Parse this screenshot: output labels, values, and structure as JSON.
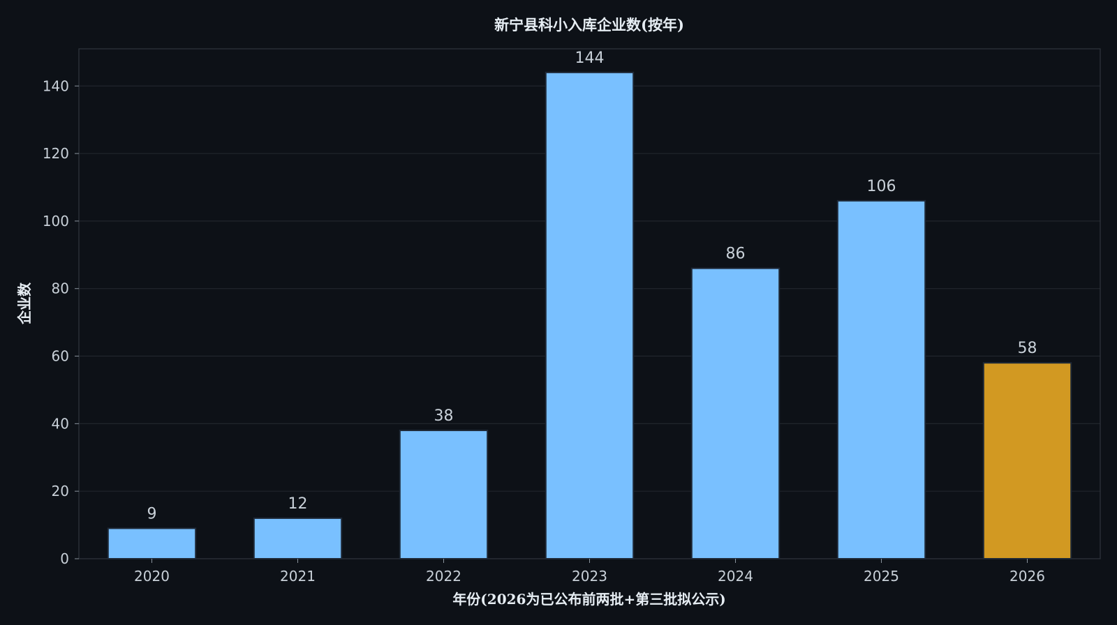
{
  "chart_data": {
    "type": "bar",
    "title": "新宁县科小入库企业数(按年)",
    "xlabel": "年份(2026为已公布前两批+第三批拟公示)",
    "ylabel": "企业数",
    "categories": [
      "2020",
      "2021",
      "2022",
      "2023",
      "2024",
      "2025",
      "2026"
    ],
    "values": [
      9,
      12,
      38,
      144,
      86,
      106,
      58
    ],
    "ylim": [
      0,
      151
    ],
    "yticks": [
      0,
      20,
      40,
      60,
      80,
      100,
      120,
      140
    ],
    "grid": true,
    "bar_colors": [
      "#79c0ff",
      "#79c0ff",
      "#79c0ff",
      "#79c0ff",
      "#79c0ff",
      "#79c0ff",
      "#d29922"
    ],
    "bar_edge_color": "#1f2937",
    "background": "#0d1117",
    "grid_color": "#21262d",
    "axis_color": "#30363d"
  }
}
